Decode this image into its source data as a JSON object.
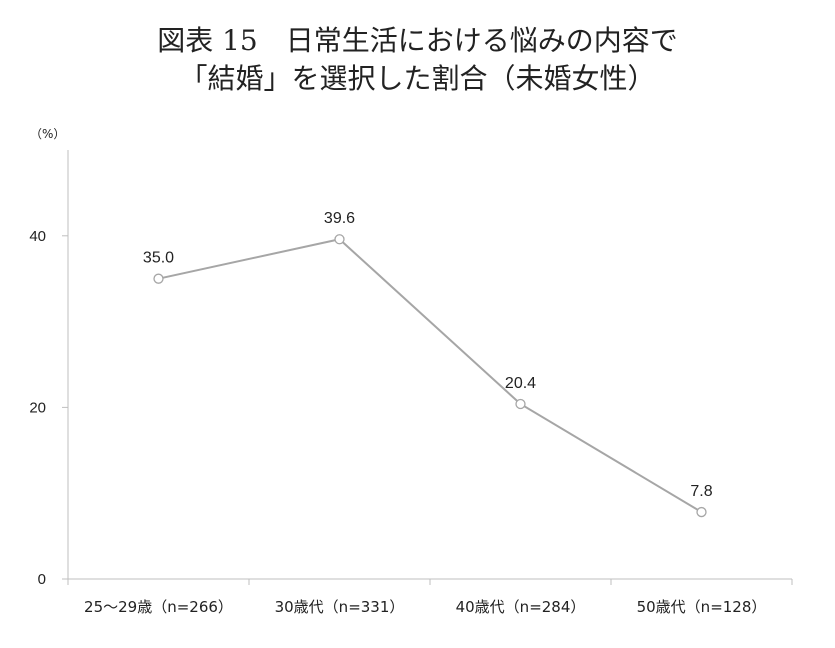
{
  "chart_data": {
    "type": "line",
    "title_line1": "図表 15　日常生活における悩みの内容で",
    "title_line2": "「結婚」を選択した割合（未婚女性）",
    "unit_label": "（%）",
    "categories": [
      "25～29歳（n=266）",
      "30歳代（n=331）",
      "40歳代（n=284）",
      "50歳代（n=128）"
    ],
    "values": [
      35.0,
      39.6,
      20.4,
      7.8
    ],
    "value_labels": [
      "35.0",
      "39.6",
      "20.4",
      "7.8"
    ],
    "ylim": [
      0,
      50
    ],
    "yticks": [
      0,
      20,
      40
    ],
    "grid": false,
    "line_color": "#a6a6a6",
    "axis_color": "#bfbfbf"
  }
}
